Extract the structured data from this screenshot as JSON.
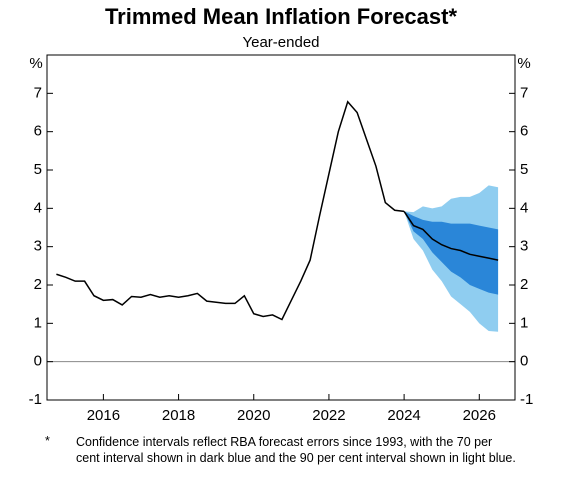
{
  "chart_data": {
    "type": "line",
    "title": "Trimmed Mean Inflation Forecast*",
    "subtitle": "Year-ended",
    "y_label": "%",
    "y2_label": "%",
    "note_marker": "*",
    "note": "Confidence intervals reflect RBA forecast errors since 1993, with the 70 per cent interval shown in dark blue and the 90 per cent interval shown in light blue.",
    "xlim": [
      2014.5,
      2026.95
    ],
    "xticks": [
      2016,
      2018,
      2020,
      2022,
      2024,
      2026
    ],
    "ylim": [
      -1,
      8
    ],
    "yticks": [
      -1,
      0,
      1,
      2,
      3,
      4,
      5,
      6,
      7
    ],
    "y2lim": [
      -1,
      8
    ],
    "y2ticks": [
      -1,
      0,
      1,
      2,
      3,
      4,
      5,
      6,
      7
    ],
    "zero_line": true,
    "bands": [
      {
        "color": "#8fcdf0",
        "x": [
          2024,
          2024.25,
          2024.5,
          2024.75,
          2025,
          2025.25,
          2025.5,
          2025.75,
          2026,
          2026.25,
          2026.5
        ],
        "lower": [
          3.92,
          3.2,
          2.9,
          2.4,
          2.1,
          1.7,
          1.5,
          1.3,
          1.0,
          0.8,
          0.78
        ],
        "upper": [
          3.92,
          3.9,
          4.05,
          4.0,
          4.05,
          4.25,
          4.3,
          4.3,
          4.4,
          4.6,
          4.55
        ]
      },
      {
        "color": "#2a86d8",
        "x": [
          2024,
          2024.25,
          2024.5,
          2024.75,
          2025,
          2025.25,
          2025.5,
          2025.75,
          2026,
          2026.25,
          2026.5
        ],
        "lower": [
          3.92,
          3.4,
          3.2,
          2.85,
          2.6,
          2.35,
          2.2,
          2.0,
          1.9,
          1.8,
          1.75
        ],
        "upper": [
          3.92,
          3.8,
          3.7,
          3.65,
          3.65,
          3.6,
          3.6,
          3.6,
          3.55,
          3.5,
          3.45
        ]
      }
    ],
    "series": [
      {
        "color": "#000000",
        "x": [
          2014.75,
          2015,
          2015.25,
          2015.5,
          2015.75,
          2016,
          2016.25,
          2016.5,
          2016.75,
          2017,
          2017.25,
          2017.5,
          2017.75,
          2018,
          2018.25,
          2018.5,
          2018.75,
          2019,
          2019.25,
          2019.5,
          2019.75,
          2020,
          2020.25,
          2020.5,
          2020.75,
          2021,
          2021.25,
          2021.5,
          2021.75,
          2022,
          2022.25,
          2022.5,
          2022.75,
          2023,
          2023.25,
          2023.5,
          2023.75,
          2024
        ],
        "values": [
          2.28,
          2.2,
          2.1,
          2.1,
          1.72,
          1.6,
          1.62,
          1.48,
          1.7,
          1.68,
          1.75,
          1.68,
          1.72,
          1.68,
          1.72,
          1.78,
          1.58,
          1.55,
          1.52,
          1.52,
          1.72,
          1.25,
          1.18,
          1.22,
          1.1,
          1.6,
          2.1,
          2.65,
          3.8,
          4.9,
          6.0,
          6.78,
          6.5,
          5.8,
          5.1,
          4.15,
          3.95,
          3.92
        ]
      },
      {
        "color": "#000000",
        "x": [
          2024,
          2024.25,
          2024.5,
          2024.75,
          2025,
          2025.25,
          2025.5,
          2025.75,
          2026,
          2026.25,
          2026.5
        ],
        "values": [
          3.92,
          3.55,
          3.45,
          3.2,
          3.05,
          2.95,
          2.9,
          2.8,
          2.75,
          2.7,
          2.65
        ]
      }
    ]
  }
}
